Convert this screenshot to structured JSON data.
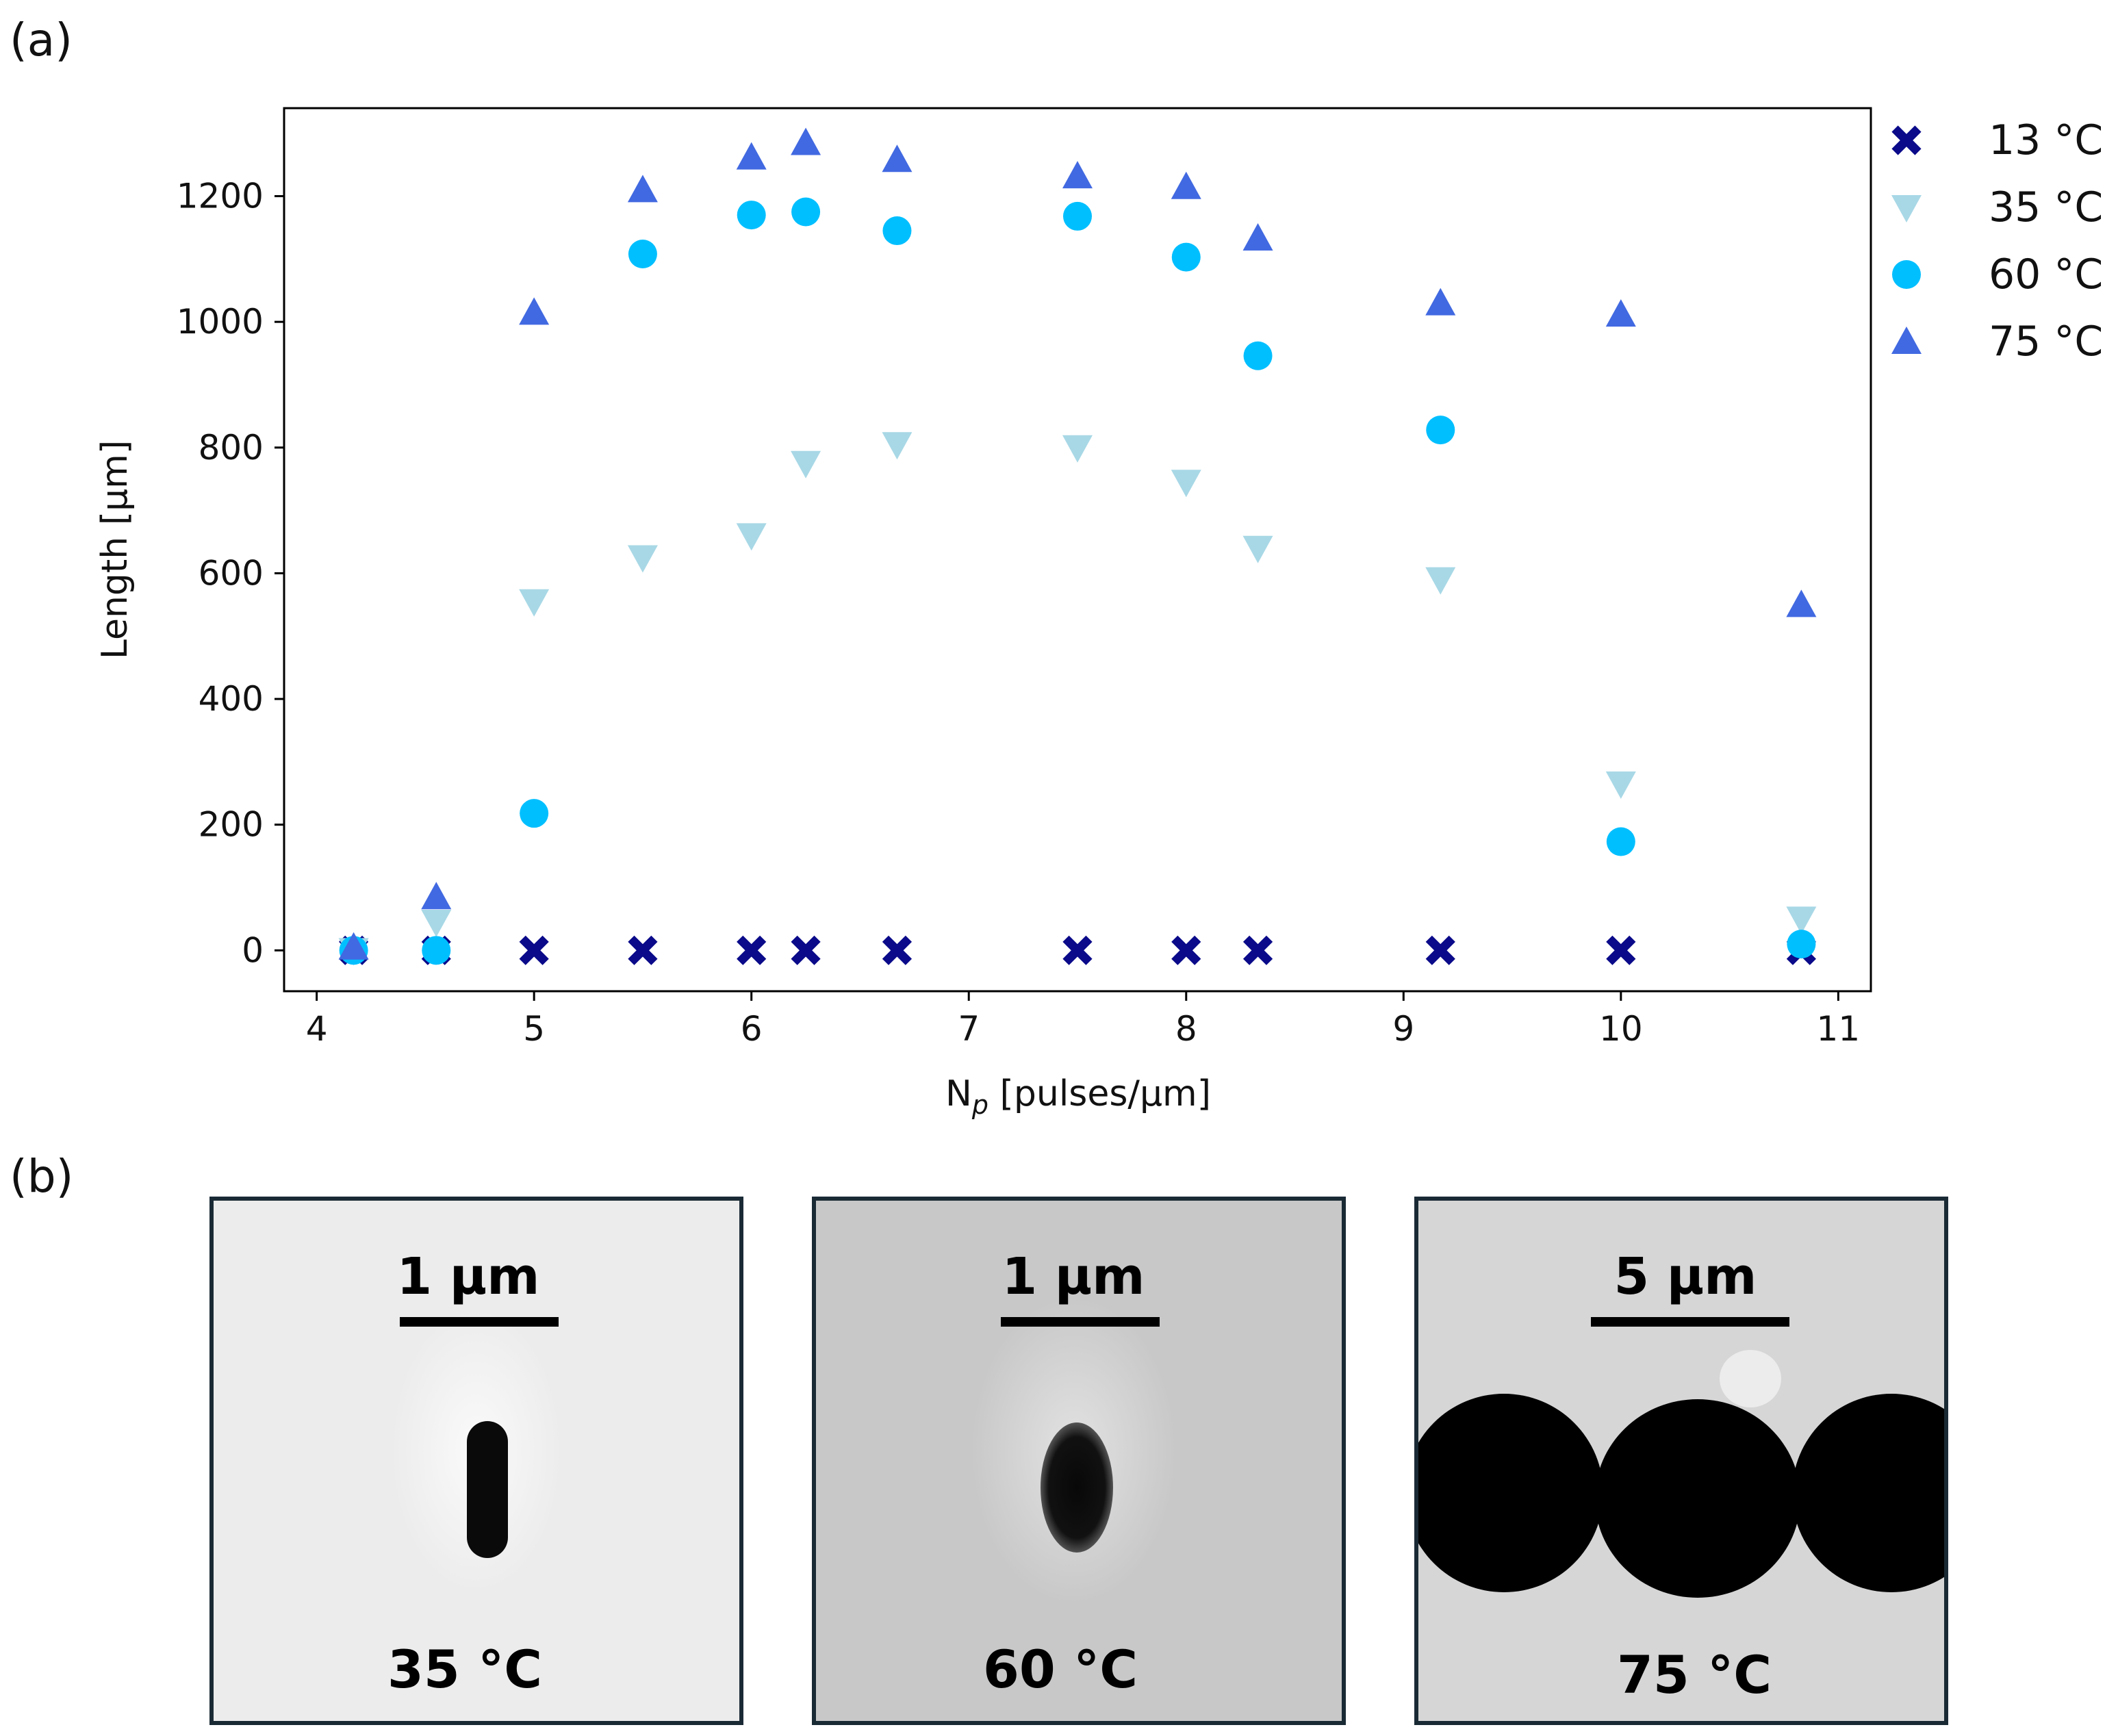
{
  "panel_labels": {
    "a": "(a)",
    "b": "(b)"
  },
  "chart_data": {
    "type": "scatter",
    "title": "",
    "xlabel_main": "N",
    "xlabel_sub": "p",
    "xlabel_rest": " [pulses/µm]",
    "ylabel": "Length [µm]",
    "xlim": [
      3.85,
      11.15
    ],
    "ylim": [
      -65,
      1340
    ],
    "xticks": [
      4,
      5,
      6,
      7,
      8,
      9,
      10,
      11
    ],
    "yticks": [
      0,
      200,
      400,
      600,
      800,
      1000,
      1200
    ],
    "legend_position": "outside-right-top",
    "series": [
      {
        "name": "13 °C",
        "marker": "x",
        "color": "#0a0a8a",
        "x": [
          4.17,
          4.55,
          5.0,
          5.5,
          6.0,
          6.25,
          6.67,
          7.5,
          8.0,
          8.33,
          9.17,
          10.0,
          10.83
        ],
        "y": [
          0,
          0,
          0,
          0,
          0,
          0,
          0,
          0,
          0,
          0,
          0,
          0,
          0
        ]
      },
      {
        "name": "35 °C",
        "marker": "triangle-down",
        "color": "#a8d8e6",
        "x": [
          4.17,
          4.55,
          5.0,
          5.5,
          6.0,
          6.25,
          6.67,
          7.5,
          8.0,
          8.33,
          9.17,
          10.0,
          10.83
        ],
        "y": [
          0,
          45,
          555,
          625,
          660,
          775,
          805,
          800,
          745,
          640,
          590,
          265,
          50
        ]
      },
      {
        "name": "60 °C",
        "marker": "circle",
        "color": "#00bfff",
        "x": [
          4.17,
          4.55,
          5.0,
          5.5,
          6.0,
          6.25,
          6.67,
          7.5,
          8.0,
          8.33,
          9.17,
          10.0,
          10.83
        ],
        "y": [
          0,
          0,
          218,
          1108,
          1170,
          1175,
          1145,
          1168,
          1103,
          946,
          828,
          173,
          10
        ]
      },
      {
        "name": "75 °C",
        "marker": "triangle-up",
        "color": "#4169e1",
        "x": [
          4.17,
          4.55,
          5.0,
          5.5,
          6.0,
          6.25,
          6.67,
          7.5,
          8.0,
          8.33,
          9.17,
          10.0,
          10.83
        ],
        "y": [
          5,
          85,
          1015,
          1210,
          1262,
          1285,
          1258,
          1232,
          1215,
          1133,
          1030,
          1012,
          550
        ]
      }
    ]
  },
  "micrographs": [
    {
      "scale": "1 µm",
      "temperature": "35 °C",
      "background": "#ececec"
    },
    {
      "scale": "1 µm",
      "temperature": "60 °C",
      "background": "#c9c9c9"
    },
    {
      "scale": "5 µm",
      "temperature": "75 °C",
      "background": "#d4d4d4"
    }
  ]
}
